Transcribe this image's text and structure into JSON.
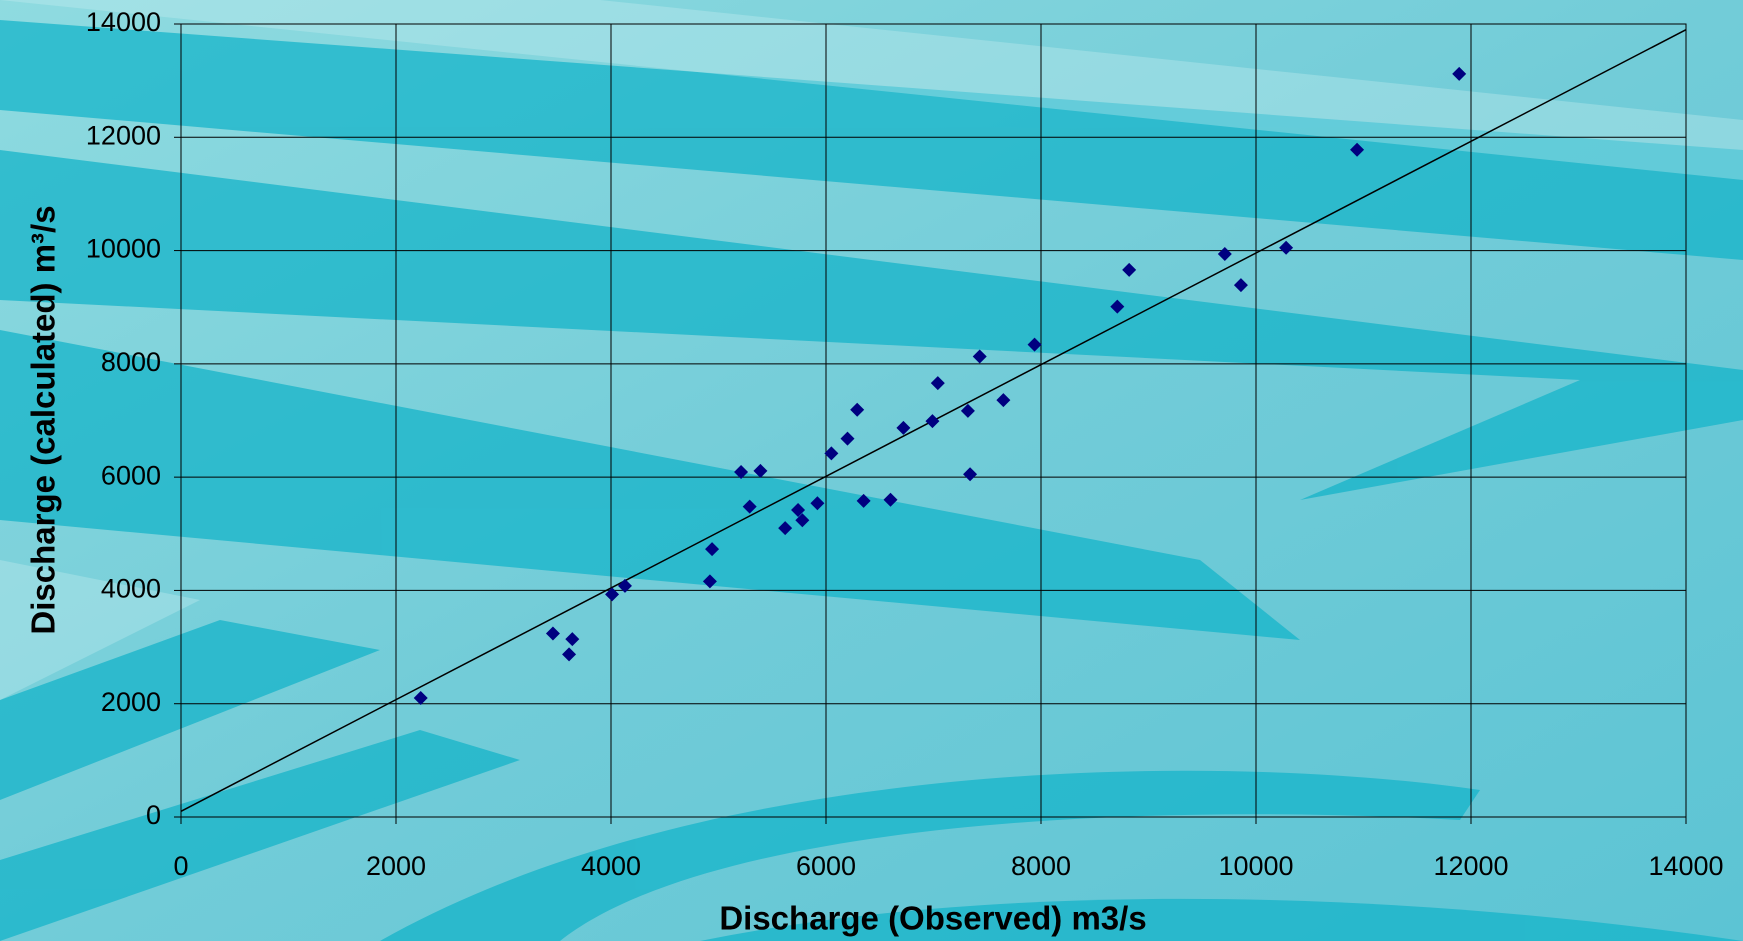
{
  "chart_data": {
    "type": "scatter",
    "x_label": "Discharge (Observed) m3/s",
    "y_label": "Discharge (calculated) m³/s",
    "x": [
      2230,
      3460,
      3610,
      3640,
      4010,
      4130,
      4920,
      4940,
      5210,
      5290,
      5390,
      5620,
      5740,
      5780,
      5920,
      6050,
      6200,
      6290,
      6350,
      6600,
      6720,
      6990,
      7040,
      7320,
      7340,
      7430,
      7650,
      7940,
      8710,
      8820,
      9710,
      9860,
      10280,
      10940,
      11890
    ],
    "values": [
      2100,
      3240,
      2870,
      3140,
      3930,
      4080,
      4160,
      4730,
      6090,
      5480,
      6110,
      5100,
      5420,
      5240,
      5540,
      6420,
      6680,
      7190,
      5580,
      5600,
      6870,
      6990,
      7660,
      7170,
      6050,
      8130,
      7360,
      8340,
      9010,
      9660,
      9940,
      9390,
      10050,
      11780,
      13120
    ],
    "color": "#000080",
    "line": {
      "x": [
        0,
        14000
      ],
      "y": [
        100,
        13900
      ],
      "color": "#000000"
    },
    "xlim": [
      0,
      14000
    ],
    "ylim": [
      0,
      14000
    ],
    "xticks": [
      0,
      2000,
      4000,
      6000,
      8000,
      10000,
      12000,
      14000
    ],
    "yticks": [
      0,
      2000,
      4000,
      6000,
      8000,
      10000,
      12000,
      14000
    ],
    "grid": true
  }
}
